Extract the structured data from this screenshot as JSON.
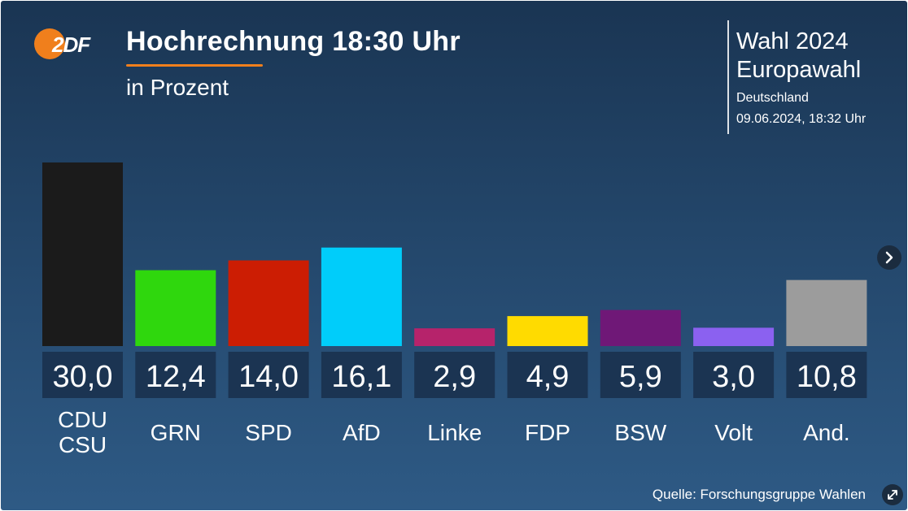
{
  "header": {
    "logo_text": "2DF",
    "title": "Hochrechnung 18:30 Uhr",
    "subtitle": "in Prozent"
  },
  "info": {
    "line1": "Wahl 2024",
    "line2": "Europawahl",
    "region": "Deutschland",
    "timestamp": "09.06.2024, 18:32 Uhr"
  },
  "footer": {
    "source": "Quelle: Forschungsgruppe Wahlen"
  },
  "colors": {
    "accent": "#f07f1c",
    "value_box": "#1b3452"
  },
  "icons": {
    "next": "chevron-right-icon",
    "expand": "expand-icon"
  },
  "chart_data": {
    "type": "bar",
    "title": "Hochrechnung 18:30 Uhr",
    "subtitle": "in Prozent",
    "categories": [
      "CDU\nCSU",
      "GRN",
      "SPD",
      "AfD",
      "Linke",
      "FDP",
      "BSW",
      "Volt",
      "And."
    ],
    "values": [
      30.0,
      12.4,
      14.0,
      16.1,
      2.9,
      4.9,
      5.9,
      3.0,
      10.8
    ],
    "value_labels": [
      "30,0",
      "12,4",
      "14,0",
      "16,1",
      "2,9",
      "4,9",
      "5,9",
      "3,0",
      "10,8"
    ],
    "colors": [
      "#1b1b1b",
      "#2fd70d",
      "#cc1d03",
      "#00cdfa",
      "#b6236b",
      "#ffdb00",
      "#6f1877",
      "#8b61f0",
      "#9c9c9c"
    ],
    "ylim": [
      0,
      30
    ],
    "grid": false,
    "legend": "none"
  }
}
